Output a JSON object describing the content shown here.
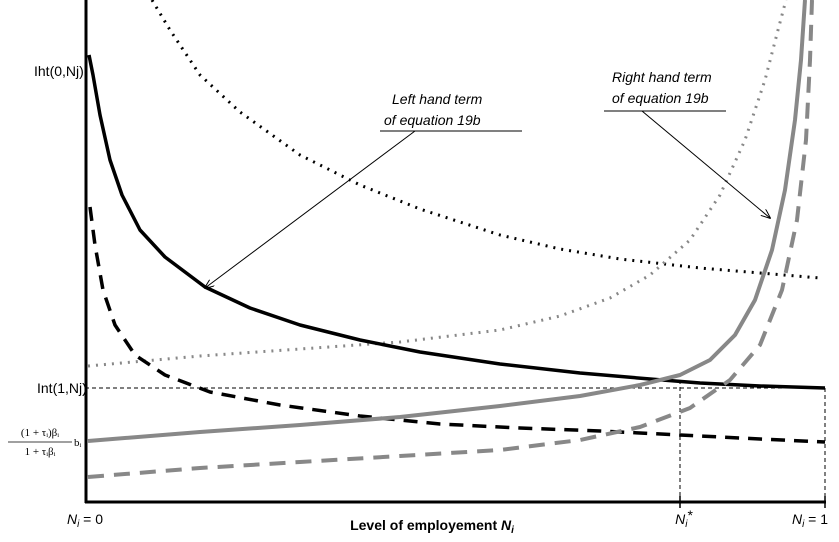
{
  "y_labels": {
    "top": "Iht(0,Nj)",
    "middle": "Int(1,Nj)",
    "formula": {
      "numerator": "(1 + τᵢ)βᵢ",
      "denominator": "1 + τᵢβᵢ",
      "factor": "bᵢ"
    }
  },
  "x_labels": [
    {
      "main": "N",
      "sub": "i",
      "rest": " = 0"
    },
    {
      "main": "N",
      "sub": "i",
      "rest": "*"
    },
    {
      "main": "N",
      "sub": "i",
      "rest": " = 1"
    }
  ],
  "axis_title": {
    "text": "Level of employement ",
    "main": "N",
    "sub": "i"
  },
  "annotations": {
    "left": {
      "line1": "Left hand term",
      "line2": "of equation 19",
      "suffix": "b"
    },
    "right": {
      "line1": "Right hand term",
      "line2": "of equation 19",
      "suffix": "b"
    }
  }
}
